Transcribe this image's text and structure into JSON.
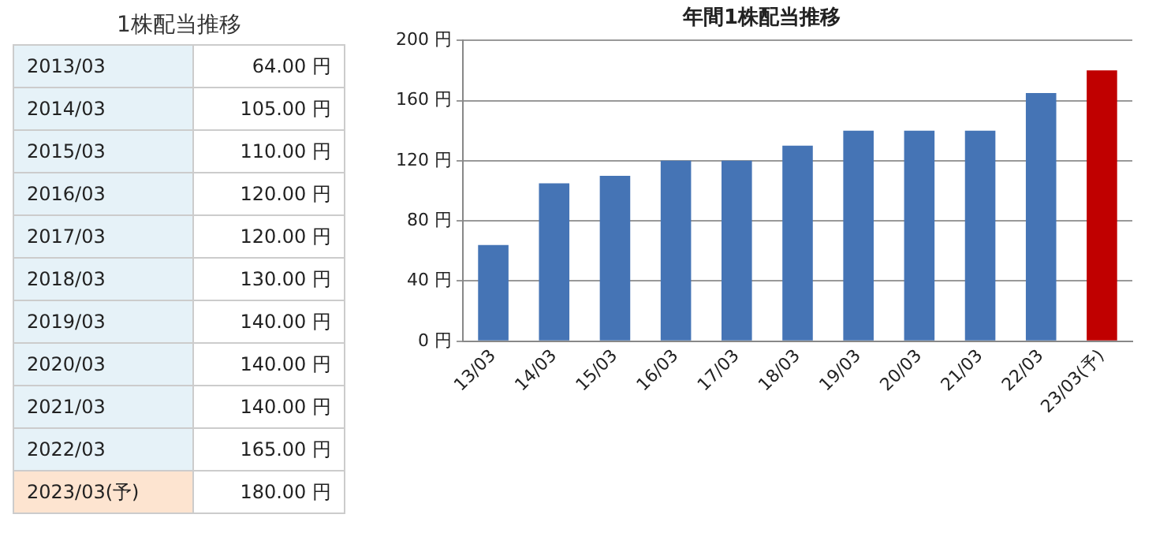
{
  "chart_data": [
    {
      "type": "other",
      "title": "1株配当推移",
      "categories": [
        "2013/03",
        "2014/03",
        "2015/03",
        "2016/03",
        "2017/03",
        "2018/03",
        "2019/03",
        "2020/03",
        "2021/03",
        "2022/03",
        "2023/03(予)"
      ],
      "value_labels": [
        "64.00 円",
        "105.00 円",
        "110.00 円",
        "120.00 円",
        "120.00 円",
        "130.00 円",
        "140.00 円",
        "140.00 円",
        "140.00 円",
        "165.00 円",
        "180.00 円"
      ],
      "colors": [
        "#e6f2f8",
        "#e6f2f8",
        "#e6f2f8",
        "#e6f2f8",
        "#e6f2f8",
        "#e6f2f8",
        "#e6f2f8",
        "#e6f2f8",
        "#e6f2f8",
        "#e6f2f8",
        "#fde4d0"
      ]
    },
    {
      "type": "bar",
      "title": "年間1株配当推移",
      "categories": [
        "13/03",
        "14/03",
        "15/03",
        "16/03",
        "17/03",
        "18/03",
        "19/03",
        "20/03",
        "21/03",
        "22/03",
        "23/03(予)"
      ],
      "values": [
        64,
        105,
        110,
        120,
        120,
        130,
        140,
        140,
        140,
        165,
        180
      ],
      "colors": [
        "#4574b5",
        "#4574b5",
        "#4574b5",
        "#4574b5",
        "#4574b5",
        "#4574b5",
        "#4574b5",
        "#4574b5",
        "#4574b5",
        "#4574b5",
        "#c00000"
      ],
      "ylim": [
        0,
        200
      ],
      "yticks": [
        {
          "value": 0,
          "label": "0 円"
        },
        {
          "value": 40,
          "label": "40 円"
        },
        {
          "value": 80,
          "label": "80 円"
        },
        {
          "value": 120,
          "label": "120 円"
        },
        {
          "value": 160,
          "label": "160 円"
        },
        {
          "value": 200,
          "label": "200 円"
        }
      ],
      "grid": "y",
      "legend": false
    }
  ]
}
